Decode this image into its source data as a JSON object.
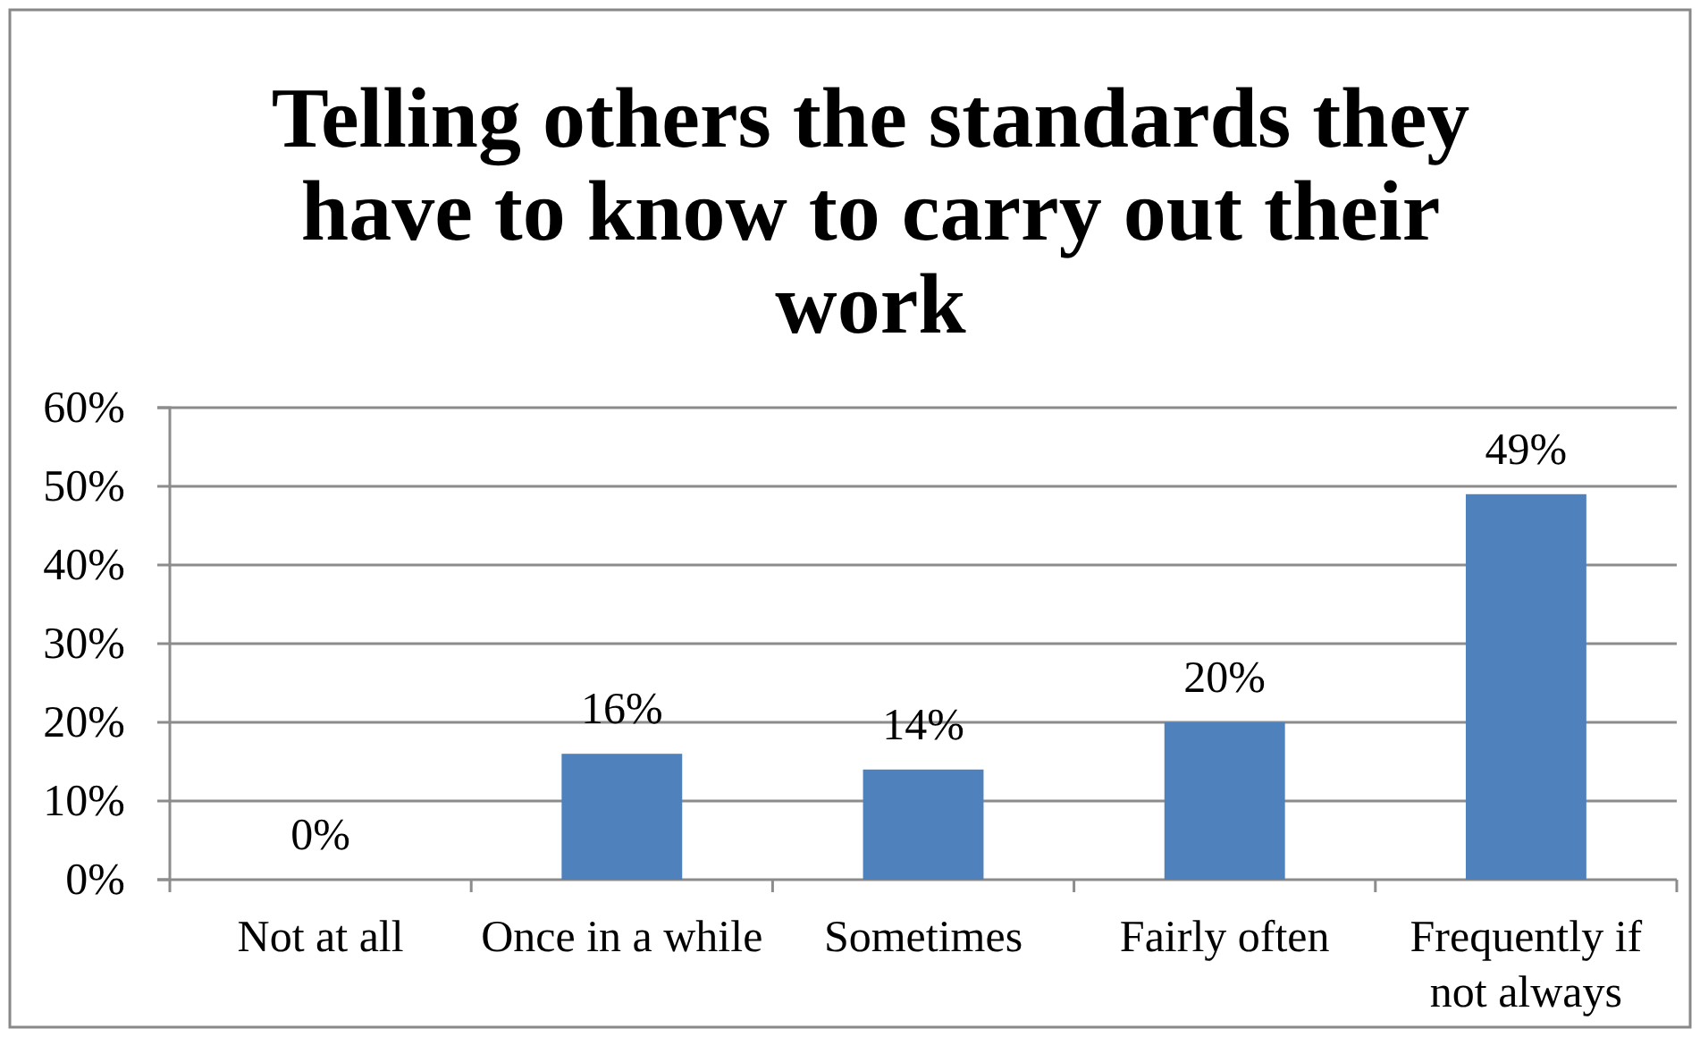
{
  "chart_data": {
    "type": "bar",
    "title": "Telling others the standards they have to know to carry out their work",
    "categories": [
      "Not at all",
      "Once in a while",
      "Sometimes",
      "Fairly often",
      "Frequently if not always"
    ],
    "values": [
      0,
      16,
      14,
      20,
      49
    ],
    "value_labels": [
      "0%",
      "16%",
      "14%",
      "20%",
      "49%"
    ],
    "color": "#4f81bd",
    "ylim": [
      0,
      60
    ],
    "yticks": [
      {
        "value": 0,
        "label": "0%"
      },
      {
        "value": 10,
        "label": "10%"
      },
      {
        "value": 20,
        "label": "20%"
      },
      {
        "value": 30,
        "label": "30%"
      },
      {
        "value": 40,
        "label": "40%"
      },
      {
        "value": 50,
        "label": "50%"
      },
      {
        "value": 60,
        "label": "60%"
      }
    ],
    "grid": "y"
  }
}
